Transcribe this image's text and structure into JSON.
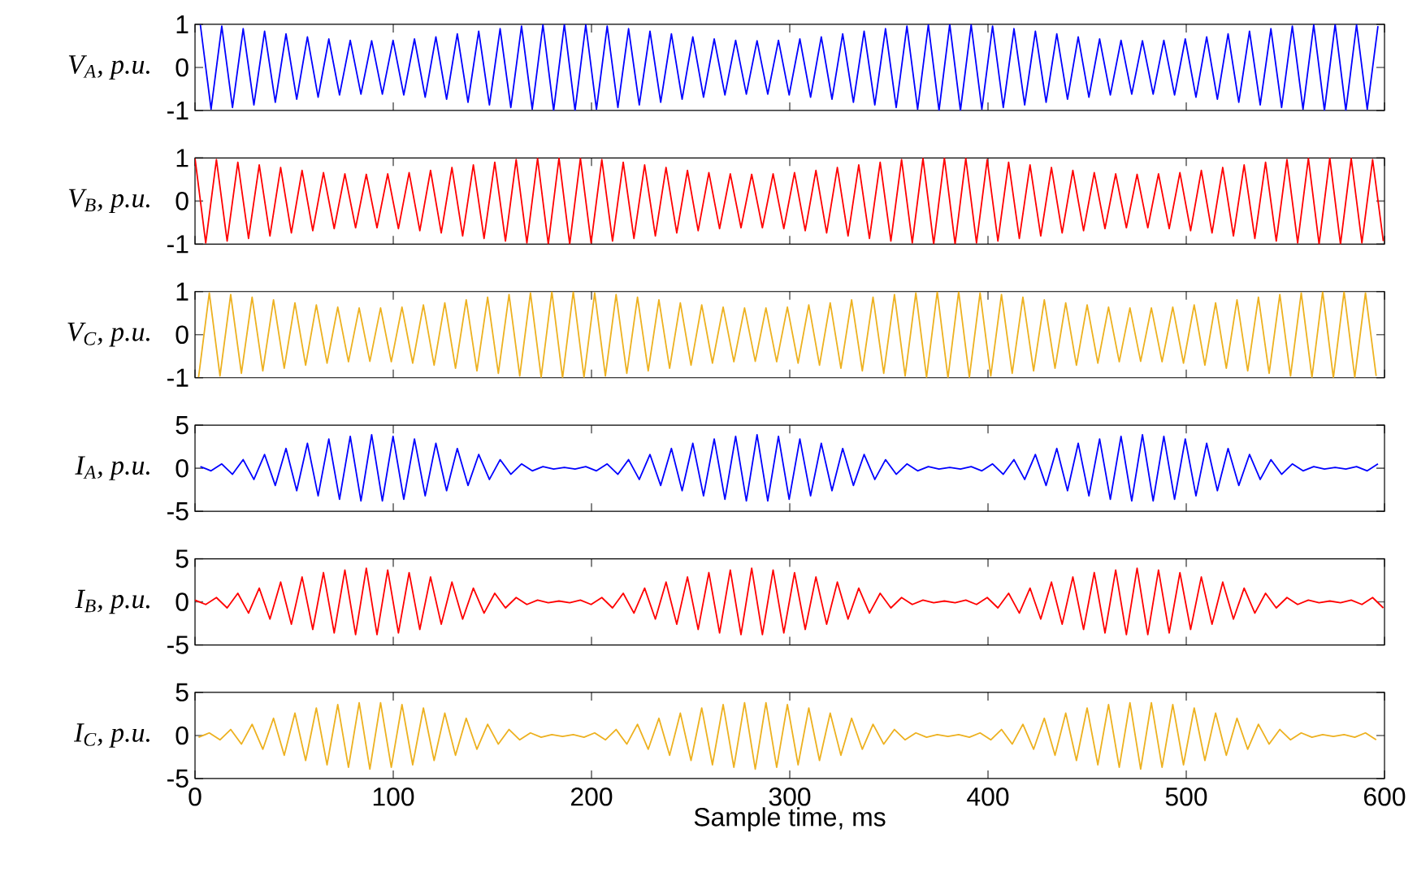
{
  "chart_data": [
    {
      "type": "line",
      "ylabel": "V$_{A}$, p.u.",
      "xlim": [
        0,
        600
      ],
      "xticks": [
        0,
        100,
        200,
        300,
        400,
        500,
        600
      ],
      "ylim": [
        -1,
        1
      ],
      "yticks": [
        -1,
        0,
        1
      ],
      "tick_labels": "y",
      "marker": "none",
      "line_style": "solid",
      "x": [
        2.7,
        8.1,
        13.5,
        18.9,
        24.3,
        29.7,
        35.1,
        40.5,
        45.9,
        51.3,
        56.7,
        62.1,
        67.5,
        72.9,
        78.3,
        83.7,
        89.1,
        94.5,
        99.9,
        105.3,
        110.7,
        116.1,
        121.5,
        126.9,
        132.3,
        137.7,
        143.1,
        148.5,
        153.9,
        159.3,
        164.7,
        170.1,
        175.5,
        180.9,
        186.3,
        191.7,
        197.1,
        202.5,
        207.9,
        213.3,
        218.7,
        224.1,
        229.5,
        234.9,
        240.3,
        245.7,
        251.1,
        256.5,
        261.9,
        267.3,
        272.7,
        278.1,
        283.5,
        288.9,
        294.3,
        299.7,
        305.1,
        310.5,
        315.9,
        321.3,
        326.7,
        332.1,
        337.5,
        342.9,
        348.3,
        353.7,
        359.1,
        364.5,
        369.9,
        375.3,
        380.7,
        386.1,
        391.5,
        396.9,
        402.3,
        407.7,
        413.1,
        418.5,
        423.9,
        429.3,
        434.7,
        440.1,
        445.5,
        450.9,
        456.3,
        461.7,
        467.1,
        472.5,
        477.9,
        483.3,
        488.7,
        494.1,
        499.5,
        504.9,
        510.3,
        515.7,
        521.1,
        526.5,
        531.9,
        537.3,
        542.7,
        548.1,
        553.5,
        558.9,
        564.3,
        569.7,
        575.1,
        580.5,
        585.9,
        591.3,
        596.7
      ],
      "series": [
        {
          "color": "#0000ff",
          "values": [
            0.99,
            -0.97,
            0.96,
            -0.93,
            0.9,
            -0.87,
            0.84,
            -0.81,
            0.78,
            -0.74,
            0.71,
            -0.69,
            0.66,
            -0.64,
            0.63,
            -0.62,
            0.62,
            -0.62,
            0.63,
            -0.64,
            0.66,
            -0.69,
            0.71,
            -0.74,
            0.78,
            -0.81,
            0.84,
            -0.87,
            0.9,
            -0.93,
            0.96,
            -0.97,
            0.99,
            -1.0,
            1.0,
            -1.0,
            0.99,
            -0.97,
            0.96,
            -0.93,
            0.9,
            -0.87,
            0.84,
            -0.81,
            0.78,
            -0.74,
            0.71,
            -0.69,
            0.66,
            -0.64,
            0.63,
            -0.62,
            0.62,
            -0.62,
            0.63,
            -0.64,
            0.66,
            -0.69,
            0.71,
            -0.74,
            0.78,
            -0.81,
            0.84,
            -0.87,
            0.9,
            -0.93,
            0.96,
            -0.97,
            0.99,
            -1.0,
            1.0,
            -1.0,
            0.99,
            -0.97,
            0.96,
            -0.93,
            0.9,
            -0.87,
            0.84,
            -0.81,
            0.78,
            -0.74,
            0.71,
            -0.69,
            0.66,
            -0.64,
            0.63,
            -0.62,
            0.62,
            -0.62,
            0.63,
            -0.64,
            0.66,
            -0.69,
            0.71,
            -0.74,
            0.78,
            -0.81,
            0.84,
            -0.87,
            0.9,
            -0.93,
            0.96,
            -0.97,
            0.99,
            -1.0,
            1.0,
            -1.0,
            0.99,
            -0.97,
            0.96
          ]
        }
      ]
    },
    {
      "type": "line",
      "ylabel": "V$_{B}$, p.u.",
      "xlim": [
        0,
        600
      ],
      "xticks": [
        0,
        100,
        200,
        300,
        400,
        500,
        600
      ],
      "ylim": [
        -1,
        1
      ],
      "yticks": [
        -1,
        0,
        1
      ],
      "tick_labels": "y",
      "marker": "none",
      "line_style": "solid",
      "x": [
        0,
        5.4,
        10.8,
        16.2,
        21.6,
        27,
        32.4,
        37.8,
        43.2,
        48.6,
        54,
        59.4,
        64.8,
        70.2,
        75.6,
        81,
        86.4,
        91.8,
        97.2,
        102.6,
        108,
        113.4,
        118.8,
        124.2,
        129.6,
        135,
        140.4,
        145.8,
        151.2,
        156.6,
        162,
        167.4,
        172.8,
        178.2,
        183.6,
        189,
        194.4,
        199.8,
        205.2,
        210.6,
        216,
        221.4,
        226.8,
        232.2,
        237.6,
        243,
        248.4,
        253.8,
        259.2,
        264.6,
        270,
        275.4,
        280.8,
        286.2,
        291.6,
        297,
        302.4,
        307.8,
        313.2,
        318.6,
        324,
        329.4,
        334.8,
        340.2,
        345.6,
        351,
        356.4,
        361.8,
        367.2,
        372.6,
        378,
        383.4,
        388.8,
        394.2,
        399.6,
        405,
        410.4,
        415.8,
        421.2,
        426.6,
        432,
        437.4,
        442.8,
        448.2,
        453.6,
        459,
        464.4,
        469.8,
        475.2,
        480.6,
        486,
        491.4,
        496.8,
        502.2,
        507.6,
        513,
        518.4,
        523.8,
        529.2,
        534.6,
        540,
        545.4,
        550.8,
        556.2,
        561.6,
        567,
        572.4,
        577.8,
        583.2,
        588.6,
        594,
        599.4
      ],
      "series": [
        {
          "color": "#ff0000",
          "values": [
            0.99,
            -0.97,
            0.96,
            -0.93,
            0.9,
            -0.87,
            0.84,
            -0.81,
            0.78,
            -0.74,
            0.71,
            -0.69,
            0.66,
            -0.64,
            0.63,
            -0.62,
            0.62,
            -0.62,
            0.63,
            -0.64,
            0.66,
            -0.69,
            0.71,
            -0.74,
            0.78,
            -0.81,
            0.84,
            -0.87,
            0.9,
            -0.93,
            0.96,
            -0.97,
            0.99,
            -1.0,
            1.0,
            -1.0,
            0.99,
            -0.97,
            0.96,
            -0.93,
            0.9,
            -0.87,
            0.84,
            -0.81,
            0.78,
            -0.74,
            0.71,
            -0.69,
            0.66,
            -0.64,
            0.63,
            -0.62,
            0.62,
            -0.62,
            0.63,
            -0.64,
            0.66,
            -0.69,
            0.71,
            -0.74,
            0.78,
            -0.81,
            0.84,
            -0.87,
            0.9,
            -0.93,
            0.96,
            -0.97,
            0.99,
            -1.0,
            1.0,
            -1.0,
            0.99,
            -0.97,
            0.96,
            -0.93,
            0.9,
            -0.87,
            0.84,
            -0.81,
            0.78,
            -0.74,
            0.71,
            -0.69,
            0.66,
            -0.64,
            0.63,
            -0.62,
            0.62,
            -0.62,
            0.63,
            -0.64,
            0.66,
            -0.69,
            0.71,
            -0.74,
            0.78,
            -0.81,
            0.84,
            -0.87,
            0.9,
            -0.93,
            0.96,
            -0.97,
            0.99,
            -1.0,
            1.0,
            -1.0,
            0.99,
            -0.97,
            0.96,
            -0.93
          ]
        }
      ]
    },
    {
      "type": "line",
      "ylabel": "V$_{C}$, p.u.",
      "xlim": [
        0,
        600
      ],
      "xticks": [
        0,
        100,
        200,
        300,
        400,
        500,
        600
      ],
      "ylim": [
        -1,
        1
      ],
      "yticks": [
        -1,
        0,
        1
      ],
      "tick_labels": "y",
      "marker": "none",
      "line_style": "solid",
      "x": [
        1.8,
        7.2,
        12.6,
        18,
        23.4,
        28.8,
        34.2,
        39.6,
        45,
        50.4,
        55.8,
        61.2,
        66.6,
        72,
        77.4,
        82.8,
        88.2,
        93.6,
        99,
        104.4,
        109.8,
        115.2,
        120.6,
        126,
        131.4,
        136.8,
        142.2,
        147.6,
        153,
        158.4,
        163.8,
        169.2,
        174.6,
        180,
        185.4,
        190.8,
        196.2,
        201.6,
        207,
        212.4,
        217.8,
        223.2,
        228.6,
        234,
        239.4,
        244.8,
        250.2,
        255.6,
        261,
        266.4,
        271.8,
        277.2,
        282.6,
        288,
        293.4,
        298.8,
        304.2,
        309.6,
        315,
        320.4,
        325.8,
        331.2,
        336.6,
        342,
        347.4,
        352.8,
        358.2,
        363.6,
        369,
        374.4,
        379.8,
        385.2,
        390.6,
        396,
        401.4,
        406.8,
        412.2,
        417.6,
        423,
        428.4,
        433.8,
        439.2,
        444.6,
        450,
        455.4,
        460.8,
        466.2,
        471.6,
        477,
        482.4,
        487.8,
        493.2,
        498.6,
        504,
        509.4,
        514.8,
        520.2,
        525.6,
        531,
        536.4,
        541.8,
        547.2,
        552.6,
        558,
        563.4,
        568.8,
        574.2,
        579.6,
        585,
        590.4,
        595.8
      ],
      "series": [
        {
          "color": "#edb120",
          "values": [
            -0.99,
            0.97,
            -0.96,
            0.93,
            -0.9,
            0.87,
            -0.84,
            0.81,
            -0.78,
            0.74,
            -0.71,
            0.69,
            -0.66,
            0.64,
            -0.63,
            0.62,
            -0.62,
            0.62,
            -0.63,
            0.64,
            -0.66,
            0.69,
            -0.71,
            0.74,
            -0.78,
            0.81,
            -0.84,
            0.87,
            -0.9,
            0.93,
            -0.96,
            0.97,
            -0.99,
            1.0,
            -1.0,
            1.0,
            -0.99,
            0.97,
            -0.96,
            0.93,
            -0.9,
            0.87,
            -0.84,
            0.81,
            -0.78,
            0.74,
            -0.71,
            0.69,
            -0.66,
            0.64,
            -0.63,
            0.62,
            -0.62,
            0.62,
            -0.63,
            0.64,
            -0.66,
            0.69,
            -0.71,
            0.74,
            -0.78,
            0.81,
            -0.84,
            0.87,
            -0.9,
            0.93,
            -0.96,
            0.97,
            -0.99,
            1.0,
            -1.0,
            1.0,
            -0.99,
            0.97,
            -0.96,
            0.93,
            -0.9,
            0.87,
            -0.84,
            0.81,
            -0.78,
            0.74,
            -0.71,
            0.69,
            -0.66,
            0.64,
            -0.63,
            0.62,
            -0.62,
            0.62,
            -0.63,
            0.64,
            -0.66,
            0.69,
            -0.71,
            0.74,
            -0.78,
            0.81,
            -0.84,
            0.87,
            -0.9,
            0.93,
            -0.96,
            0.97,
            -0.99,
            1.0,
            -1.0,
            1.0,
            -0.99,
            0.97,
            -0.96
          ]
        }
      ]
    },
    {
      "type": "line",
      "ylabel": "I$_{A}$, p.u.",
      "xlim": [
        0,
        600
      ],
      "xticks": [
        0,
        100,
        200,
        300,
        400,
        500,
        600
      ],
      "ylim": [
        -5,
        5
      ],
      "yticks": [
        -5,
        0,
        5
      ],
      "tick_labels": "y",
      "marker": "none",
      "line_style": "solid",
      "x": [
        2.7,
        8.1,
        13.5,
        18.9,
        24.3,
        29.7,
        35.1,
        40.5,
        45.9,
        51.3,
        56.7,
        62.1,
        67.5,
        72.9,
        78.3,
        83.7,
        89.1,
        94.5,
        99.9,
        105.3,
        110.7,
        116.1,
        121.5,
        126.9,
        132.3,
        137.7,
        143.1,
        148.5,
        153.9,
        159.3,
        164.7,
        170.1,
        175.5,
        180.9,
        186.3,
        191.7,
        197.1,
        202.5,
        207.9,
        213.3,
        218.7,
        224.1,
        229.5,
        234.9,
        240.3,
        245.7,
        251.1,
        256.5,
        261.9,
        267.3,
        272.7,
        278.1,
        283.5,
        288.9,
        294.3,
        299.7,
        305.1,
        310.5,
        315.9,
        321.3,
        326.7,
        332.1,
        337.5,
        342.9,
        348.3,
        353.7,
        359.1,
        364.5,
        369.9,
        375.3,
        380.7,
        386.1,
        391.5,
        396.9,
        402.3,
        407.7,
        413.1,
        418.5,
        423.9,
        429.3,
        434.7,
        440.1,
        445.5,
        450.9,
        456.3,
        461.7,
        467.1,
        472.5,
        477.9,
        483.3,
        488.7,
        494.1,
        499.5,
        504.9,
        510.3,
        515.7,
        521.1,
        526.5,
        531.9,
        537.3,
        542.7,
        548.1,
        553.5,
        558.9,
        564.3,
        569.7,
        575.1,
        580.5,
        585.9,
        591.3,
        596.7
      ],
      "series": [
        {
          "color": "#0000ff",
          "values": [
            0.2,
            -0.3,
            0.5,
            -0.7,
            1.0,
            -1.3,
            1.6,
            -2.0,
            2.3,
            -2.6,
            2.9,
            -3.2,
            3.4,
            -3.6,
            3.7,
            -3.8,
            3.9,
            -3.8,
            3.7,
            -3.6,
            3.4,
            -3.2,
            2.9,
            -2.6,
            2.3,
            -2.0,
            1.6,
            -1.3,
            1.0,
            -0.7,
            0.5,
            -0.3,
            0.2,
            -0.1,
            0.1,
            -0.1,
            0.2,
            -0.3,
            0.5,
            -0.7,
            1.0,
            -1.3,
            1.6,
            -2.0,
            2.3,
            -2.6,
            2.9,
            -3.2,
            3.4,
            -3.6,
            3.7,
            -3.8,
            3.9,
            -3.8,
            3.7,
            -3.6,
            3.4,
            -3.2,
            2.9,
            -2.6,
            2.3,
            -2.0,
            1.6,
            -1.3,
            1.0,
            -0.7,
            0.5,
            -0.3,
            0.2,
            -0.1,
            0.1,
            -0.1,
            0.2,
            -0.3,
            0.5,
            -0.7,
            1.0,
            -1.3,
            1.6,
            -2.0,
            2.3,
            -2.6,
            2.9,
            -3.2,
            3.4,
            -3.6,
            3.7,
            -3.8,
            3.9,
            -3.8,
            3.7,
            -3.6,
            3.4,
            -3.2,
            2.9,
            -2.6,
            2.3,
            -2.0,
            1.6,
            -1.3,
            1.0,
            -0.7,
            0.5,
            -0.3,
            0.2,
            -0.1,
            0.1,
            -0.1,
            0.2,
            -0.3,
            0.5
          ]
        }
      ]
    },
    {
      "type": "line",
      "ylabel": "I$_{B}$, p.u.",
      "xlim": [
        0,
        600
      ],
      "xticks": [
        0,
        100,
        200,
        300,
        400,
        500,
        600
      ],
      "ylim": [
        -5,
        5
      ],
      "yticks": [
        -5,
        0,
        5
      ],
      "tick_labels": "y",
      "marker": "none",
      "line_style": "solid",
      "x": [
        0,
        5.4,
        10.8,
        16.2,
        21.6,
        27,
        32.4,
        37.8,
        43.2,
        48.6,
        54,
        59.4,
        64.8,
        70.2,
        75.6,
        81,
        86.4,
        91.8,
        97.2,
        102.6,
        108,
        113.4,
        118.8,
        124.2,
        129.6,
        135,
        140.4,
        145.8,
        151.2,
        156.6,
        162,
        167.4,
        172.8,
        178.2,
        183.6,
        189,
        194.4,
        199.8,
        205.2,
        210.6,
        216,
        221.4,
        226.8,
        232.2,
        237.6,
        243,
        248.4,
        253.8,
        259.2,
        264.6,
        270,
        275.4,
        280.8,
        286.2,
        291.6,
        297,
        302.4,
        307.8,
        313.2,
        318.6,
        324,
        329.4,
        334.8,
        340.2,
        345.6,
        351,
        356.4,
        361.8,
        367.2,
        372.6,
        378,
        383.4,
        388.8,
        394.2,
        399.6,
        405,
        410.4,
        415.8,
        421.2,
        426.6,
        432,
        437.4,
        442.8,
        448.2,
        453.6,
        459,
        464.4,
        469.8,
        475.2,
        480.6,
        486,
        491.4,
        496.8,
        502.2,
        507.6,
        513,
        518.4,
        523.8,
        529.2,
        534.6,
        540,
        545.4,
        550.8,
        556.2,
        561.6,
        567,
        572.4,
        577.8,
        583.2,
        588.6,
        594,
        599.4
      ],
      "series": [
        {
          "color": "#ff0000",
          "values": [
            0.2,
            -0.3,
            0.5,
            -0.7,
            1.0,
            -1.3,
            1.6,
            -2.0,
            2.3,
            -2.6,
            2.9,
            -3.2,
            3.4,
            -3.6,
            3.7,
            -3.8,
            3.9,
            -3.8,
            3.7,
            -3.6,
            3.4,
            -3.2,
            2.9,
            -2.6,
            2.3,
            -2.0,
            1.6,
            -1.3,
            1.0,
            -0.7,
            0.5,
            -0.3,
            0.2,
            -0.1,
            0.1,
            -0.1,
            0.2,
            -0.3,
            0.5,
            -0.7,
            1.0,
            -1.3,
            1.6,
            -2.0,
            2.3,
            -2.6,
            2.9,
            -3.2,
            3.4,
            -3.6,
            3.7,
            -3.8,
            3.9,
            -3.8,
            3.7,
            -3.6,
            3.4,
            -3.2,
            2.9,
            -2.6,
            2.3,
            -2.0,
            1.6,
            -1.3,
            1.0,
            -0.7,
            0.5,
            -0.3,
            0.2,
            -0.1,
            0.1,
            -0.1,
            0.2,
            -0.3,
            0.5,
            -0.7,
            1.0,
            -1.3,
            1.6,
            -2.0,
            2.3,
            -2.6,
            2.9,
            -3.2,
            3.4,
            -3.6,
            3.7,
            -3.8,
            3.9,
            -3.8,
            3.7,
            -3.6,
            3.4,
            -3.2,
            2.9,
            -2.6,
            2.3,
            -2.0,
            1.6,
            -1.3,
            1.0,
            -0.7,
            0.5,
            -0.3,
            0.2,
            -0.1,
            0.1,
            -0.1,
            0.2,
            -0.3,
            0.5,
            -0.7
          ]
        }
      ]
    },
    {
      "type": "line",
      "ylabel": "I$_{C}$, p.u.",
      "xlabel": "Sample time, ms",
      "xlim": [
        0,
        600
      ],
      "xticks": [
        0,
        100,
        200,
        300,
        400,
        500,
        600
      ],
      "ylim": [
        -5,
        5
      ],
      "yticks": [
        -5,
        0,
        5
      ],
      "marker": "none",
      "line_style": "solid",
      "x": [
        1.8,
        7.2,
        12.6,
        18,
        23.4,
        28.8,
        34.2,
        39.6,
        45,
        50.4,
        55.8,
        61.2,
        66.6,
        72,
        77.4,
        82.8,
        88.2,
        93.6,
        99,
        104.4,
        109.8,
        115.2,
        120.6,
        126,
        131.4,
        136.8,
        142.2,
        147.6,
        153,
        158.4,
        163.8,
        169.2,
        174.6,
        180,
        185.4,
        190.8,
        196.2,
        201.6,
        207,
        212.4,
        217.8,
        223.2,
        228.6,
        234,
        239.4,
        244.8,
        250.2,
        255.6,
        261,
        266.4,
        271.8,
        277.2,
        282.6,
        288,
        293.4,
        298.8,
        304.2,
        309.6,
        315,
        320.4,
        325.8,
        331.2,
        336.6,
        342,
        347.4,
        352.8,
        358.2,
        363.6,
        369,
        374.4,
        379.8,
        385.2,
        390.6,
        396,
        401.4,
        406.8,
        412.2,
        417.6,
        423,
        428.4,
        433.8,
        439.2,
        444.6,
        450,
        455.4,
        460.8,
        466.2,
        471.6,
        477,
        482.4,
        487.8,
        493.2,
        498.6,
        504,
        509.4,
        514.8,
        520.2,
        525.6,
        531,
        536.4,
        541.8,
        547.2,
        552.6,
        558,
        563.4,
        568.8,
        574.2,
        579.6,
        585,
        590.4,
        595.8
      ],
      "series": [
        {
          "color": "#edb120",
          "values": [
            -0.2,
            0.3,
            -0.5,
            0.7,
            -1.0,
            1.3,
            -1.6,
            2.0,
            -2.3,
            2.6,
            -2.9,
            3.2,
            -3.4,
            3.6,
            -3.7,
            3.8,
            -3.9,
            3.8,
            -3.7,
            3.6,
            -3.4,
            3.2,
            -2.9,
            2.6,
            -2.3,
            2.0,
            -1.6,
            1.3,
            -1.0,
            0.7,
            -0.5,
            0.3,
            -0.2,
            0.1,
            -0.1,
            0.1,
            -0.2,
            0.3,
            -0.5,
            0.7,
            -1.0,
            1.3,
            -1.6,
            2.0,
            -2.3,
            2.6,
            -2.9,
            3.2,
            -3.4,
            3.6,
            -3.7,
            3.8,
            -3.9,
            3.8,
            -3.7,
            3.6,
            -3.4,
            3.2,
            -2.9,
            2.6,
            -2.3,
            2.0,
            -1.6,
            1.3,
            -1.0,
            0.7,
            -0.5,
            0.3,
            -0.2,
            0.1,
            -0.1,
            0.1,
            -0.2,
            0.3,
            -0.5,
            0.7,
            -1.0,
            1.3,
            -1.6,
            2.0,
            -2.3,
            2.6,
            -2.9,
            3.2,
            -3.4,
            3.6,
            -3.7,
            3.8,
            -3.9,
            3.8,
            -3.7,
            3.6,
            -3.4,
            3.2,
            -2.9,
            2.6,
            -2.3,
            2.0,
            -1.6,
            1.3,
            -1.0,
            0.7,
            -0.5,
            0.3,
            -0.2,
            0.1,
            -0.1,
            0.1,
            -0.2,
            0.3,
            -0.5
          ]
        }
      ]
    }
  ]
}
